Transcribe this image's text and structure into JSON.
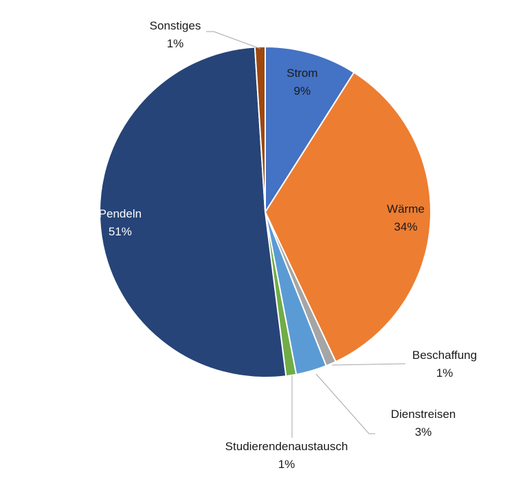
{
  "chart_data": {
    "type": "pie",
    "slices": [
      {
        "label": "Strom",
        "value": 9,
        "pct_label": "9%",
        "color": "#4472C4",
        "label_color": "#1a1a1a"
      },
      {
        "label": "Wärme",
        "value": 34,
        "pct_label": "34%",
        "color": "#ED7D31",
        "label_color": "#1a1a1a"
      },
      {
        "label": "Beschaffung",
        "value": 1,
        "pct_label": "1%",
        "color": "#A5A5A5",
        "label_color": "#1a1a1a"
      },
      {
        "label": "Dienstreisen",
        "value": 3,
        "pct_label": "3%",
        "color": "#5B9BD5",
        "label_color": "#1a1a1a"
      },
      {
        "label": "Studierendenaustausch",
        "value": 1,
        "pct_label": "1%",
        "color": "#70AD47",
        "label_color": "#1a1a1a"
      },
      {
        "label": "Pendeln",
        "value": 51,
        "pct_label": "51%",
        "color": "#264478",
        "label_color": "#ffffff"
      },
      {
        "label": "Sonstiges",
        "value": 1,
        "pct_label": "1%",
        "color": "#9E480E",
        "label_color": "#1a1a1a"
      }
    ],
    "legend": "none",
    "start_angle": "12 o'clock",
    "direction": "clockwise"
  }
}
